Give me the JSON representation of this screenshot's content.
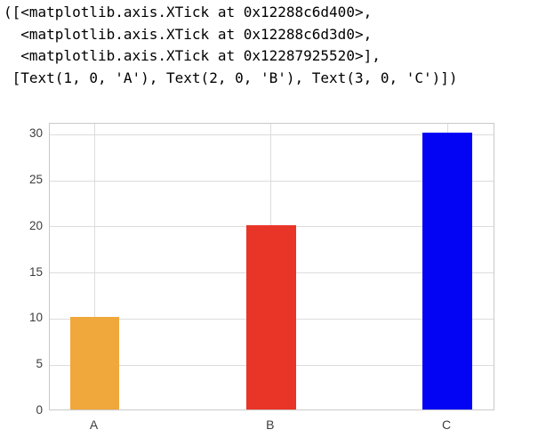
{
  "repl_output": {
    "lines": [
      "([<matplotlib.axis.XTick at 0x12288c6d400>,",
      "  <matplotlib.axis.XTick at 0x12288c6d3d0>,",
      "  <matplotlib.axis.XTick at 0x12287925520>],",
      " [Text(1, 0, 'A'), Text(2, 0, 'B'), Text(3, 0, 'C')])"
    ]
  },
  "chart_data": {
    "type": "bar",
    "categories": [
      "A",
      "B",
      "C"
    ],
    "x": [
      1,
      2,
      3
    ],
    "values": [
      10,
      20,
      30
    ],
    "bar_colors": [
      "#F0A73C",
      "#E93428",
      "#0404F5"
    ],
    "title": "",
    "xlabel": "",
    "ylabel": "",
    "yticks": [
      0,
      5,
      10,
      15,
      20,
      25,
      30
    ],
    "ylim": [
      0,
      31.2
    ],
    "xlim": [
      0.745,
      3.272
    ],
    "bar_width_units": 0.28,
    "grid": "both",
    "legend": "none",
    "grid_color": "#dcdcdc",
    "spine_color": "#c9c9c9",
    "tick_label_color": "#3d3d3d",
    "background_color": "#ffffff"
  }
}
